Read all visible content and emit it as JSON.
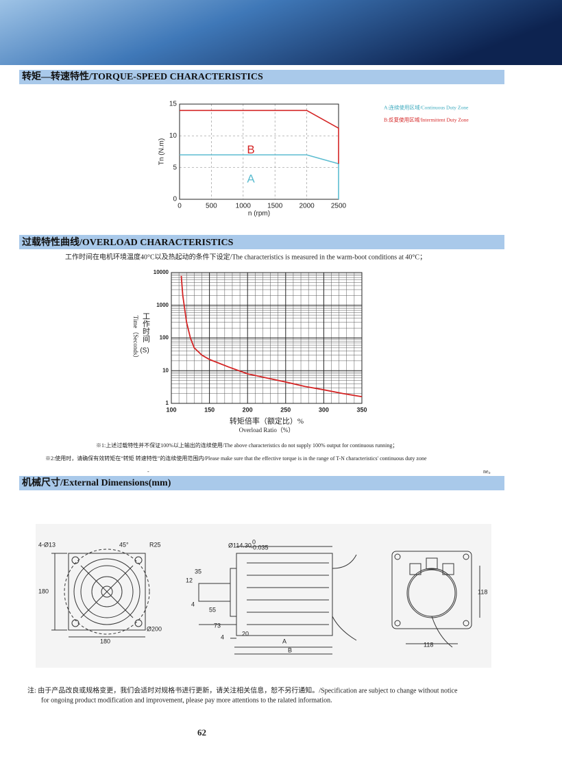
{
  "sections": {
    "torque": "转矩—转速特性/TORQUE-SPEED CHARACTERISTICS",
    "overload": "过载特性曲线/OVERLOAD CHARACTERISTICS",
    "dimensions": "机械尺寸/External Dimensions(mm)"
  },
  "chart_data": [
    {
      "type": "line",
      "xlabel": "n (rpm)",
      "ylabel": "Tn (N.m)",
      "x": [
        0,
        2000,
        2500,
        2500
      ],
      "series": [
        {
          "name": "A",
          "color": "#5bbcd0",
          "values": [
            7,
            7,
            5.6,
            0
          ]
        },
        {
          "name": "B",
          "color": "#d42424",
          "values": [
            14,
            14,
            11.2,
            5.6
          ]
        }
      ],
      "xlim": [
        0,
        2500
      ],
      "xticks": [
        0,
        500,
        1000,
        1500,
        2000,
        2500
      ],
      "ylim": [
        0,
        15
      ],
      "yticks": [
        0,
        5,
        10,
        15
      ],
      "grid": true,
      "legend": [
        "A:连续使用区域/Continuous Duty Zone",
        "B:反复使用区域/Intermittent Duty Zone"
      ]
    },
    {
      "type": "line",
      "subtitle": "工作时间在电机环境温度40°C以及热起动的条件下设定/The characteristics is measured in the warm-boot conditions at 40°C；",
      "xlabel": "转矩倍率（额定比）%",
      "xlabel2": "Overload Ratio（%）",
      "ylabel": "工作时间",
      "ylabel2": "Time（Seconds）",
      "ylabel3": "(S)",
      "x": [
        113,
        115,
        120,
        125,
        130,
        140,
        150,
        175,
        200,
        225,
        250,
        275,
        300,
        325,
        350
      ],
      "series": [
        {
          "color": "#d42424",
          "values": [
            8000,
            2000,
            300,
            100,
            50,
            30,
            22,
            13,
            8,
            6,
            4.5,
            3.3,
            2.6,
            2,
            1.6
          ]
        }
      ],
      "xlim": [
        100,
        350
      ],
      "xticks": [
        100,
        150,
        200,
        250,
        300,
        350
      ],
      "ylim": [
        1,
        10000
      ],
      "yticks": [
        1,
        10,
        100,
        1000,
        10000
      ],
      "yscale": "log",
      "grid": true
    }
  ],
  "notes": [
    "※1:上述过载特性并不保证100%以上输出的连续使用/The above characteristics do not supply 100% output for continuous running；",
    "※2:使用时，请确保有效转矩在“转矩 转速特性”的连续使用范围内/Please make sure that the effective torque is in the range of T-N characteristics' continuous duty zone",
    "-",
    "ne。"
  ],
  "dimensions": {
    "left": [
      "4-Ø13",
      "45°",
      "R25",
      "180",
      "Ø200",
      "180"
    ],
    "middle": [
      "Ø114.30",
      "0",
      "-0.035",
      "35",
      "12",
      "4",
      "55",
      "73",
      "4",
      "20",
      "A",
      "B"
    ],
    "right": [
      "118",
      "118"
    ]
  },
  "footer": {
    "note": "注:  由于产品改良或规格变更，我们会适时对规格书进行更新，请关注相关信息，恕不另行通知。/Specification are subject to change without notice",
    "note2": "for ongoing product modification and improvement, please pay more attentions to the ralated information.",
    "page": "62"
  }
}
